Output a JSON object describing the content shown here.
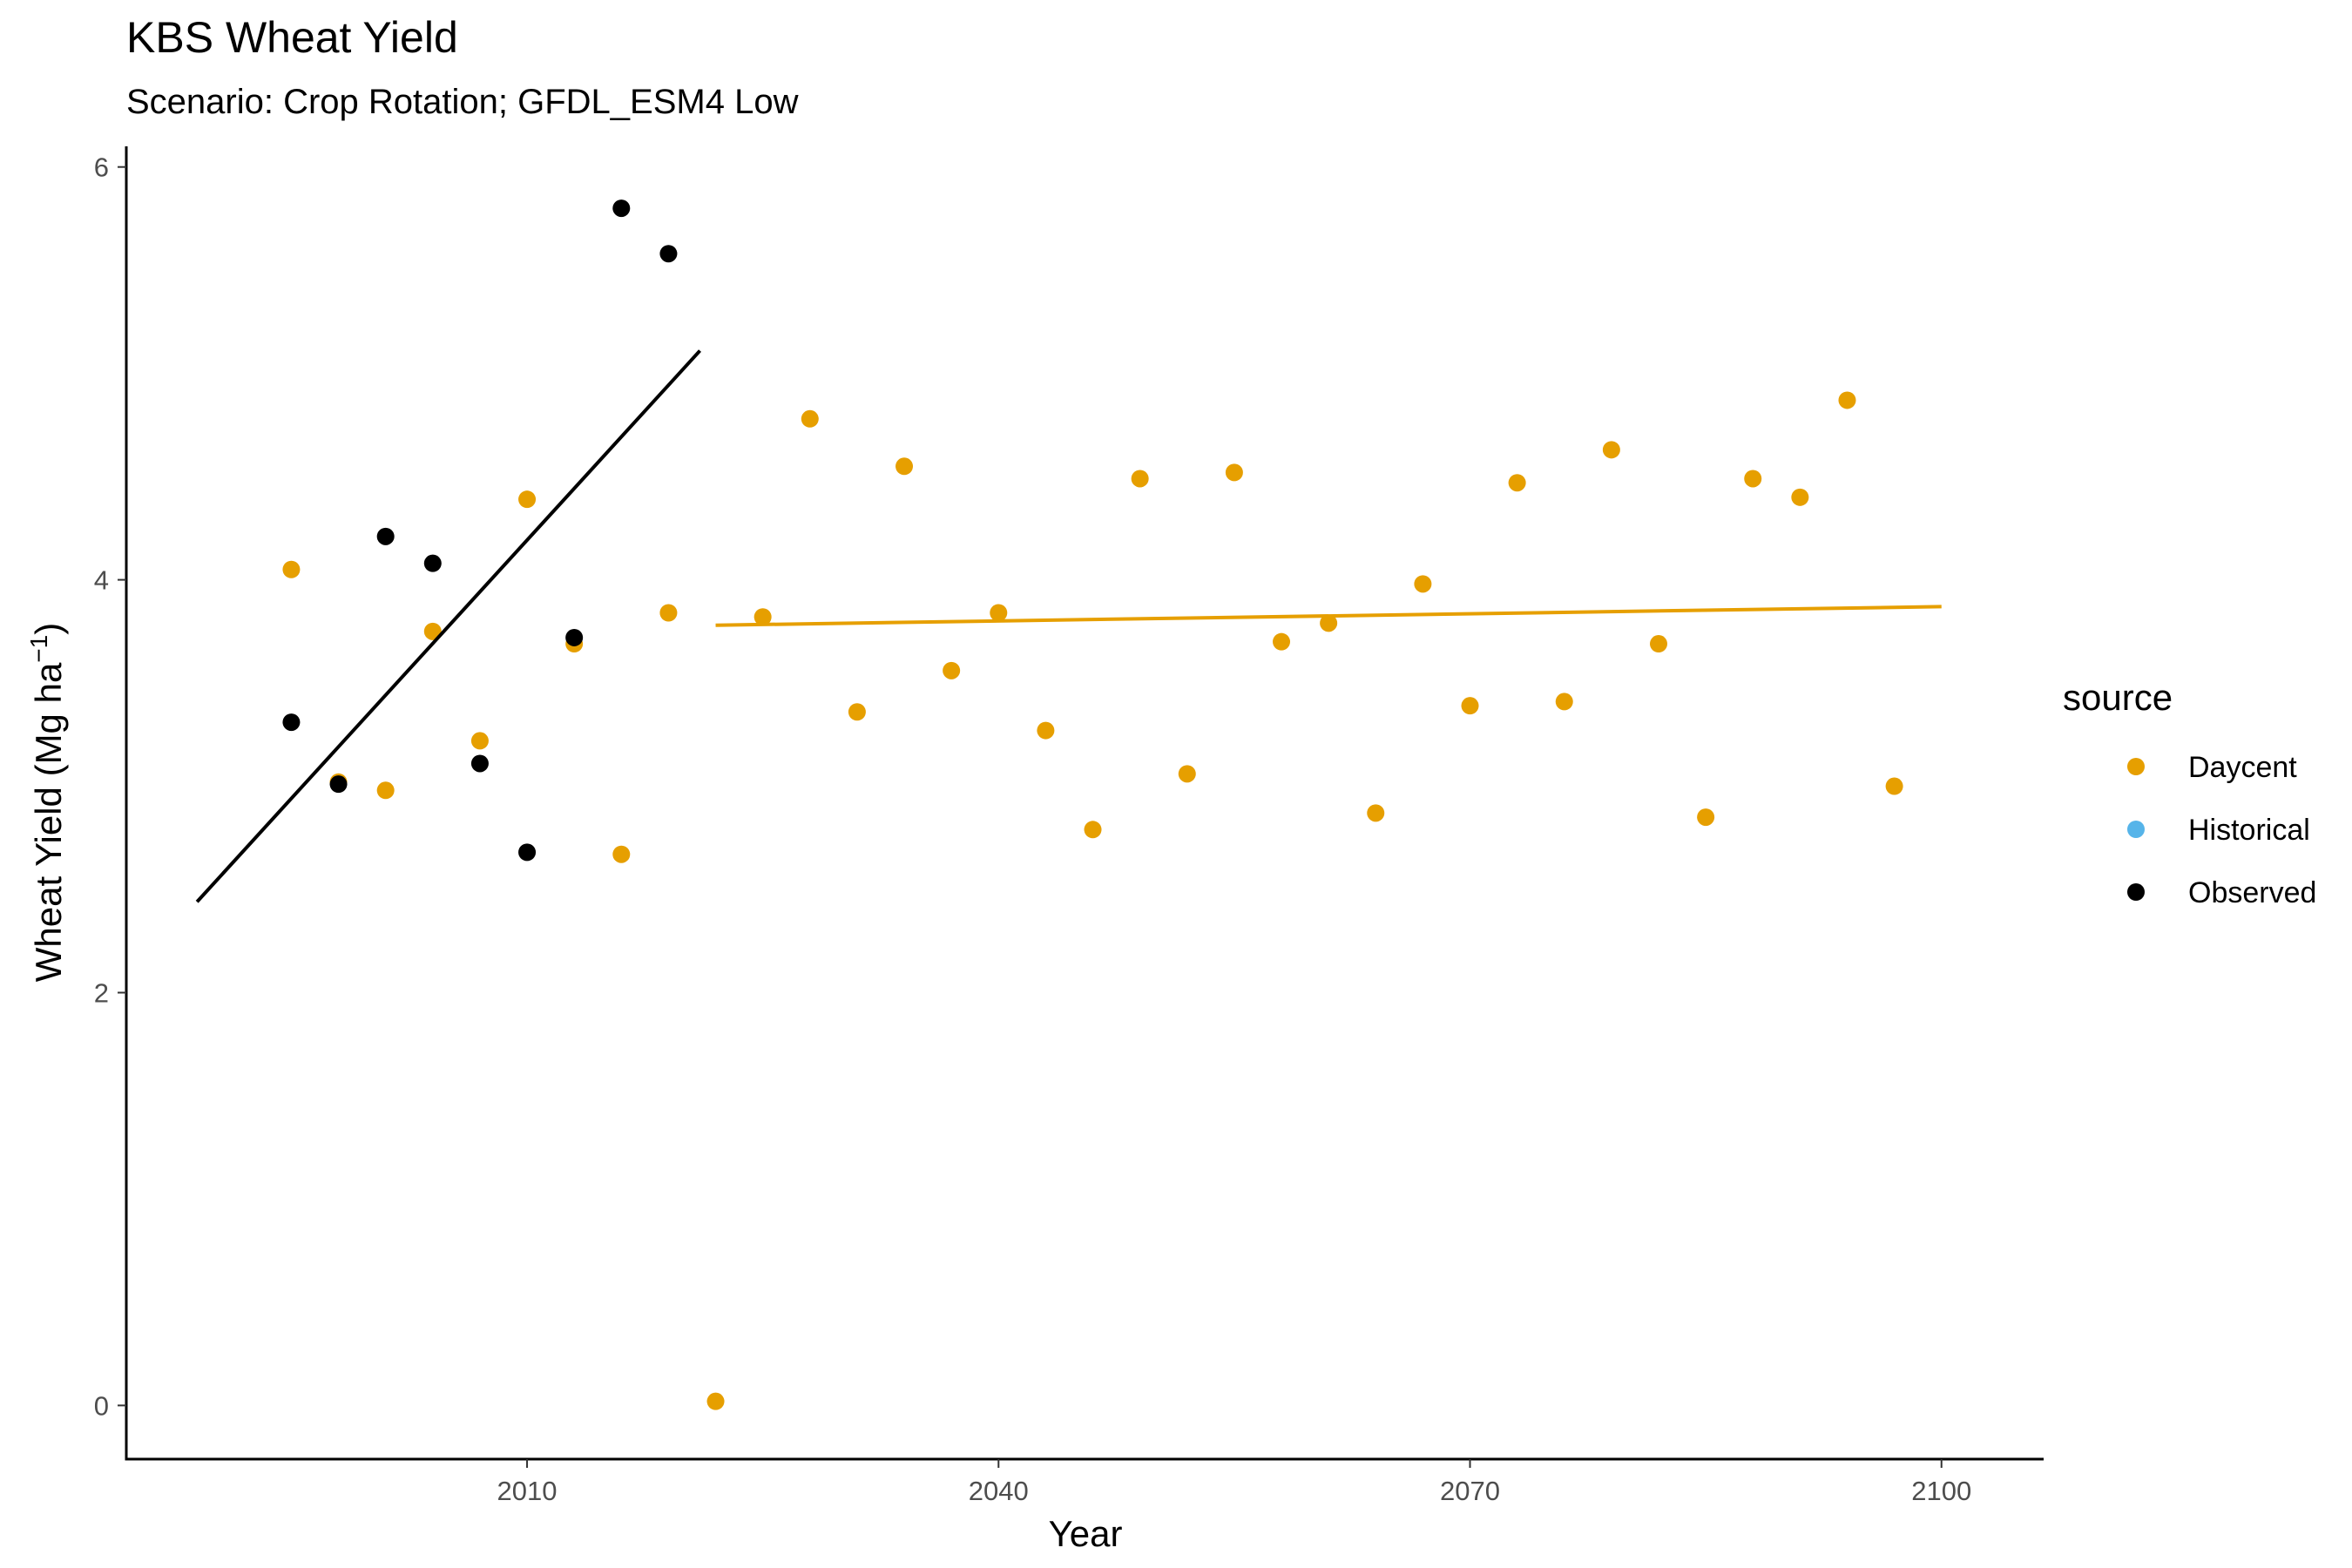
{
  "chart_data": {
    "type": "scatter",
    "title": "KBS Wheat Yield",
    "subtitle": "Scenario: Crop Rotation; GFDL_ESM4 Low",
    "xlabel": "Year",
    "ylabel": "Wheat Yield (Mg ha",
    "ylabel_sup": "−1",
    "ylabel_close": ")",
    "xlim": [
      1984.5,
      2106.5
    ],
    "ylim": [
      -0.26,
      6.1
    ],
    "x_ticks": [
      2010,
      2040,
      2070,
      2100
    ],
    "y_ticks": [
      0,
      2,
      4,
      6
    ],
    "grid": false,
    "legend": {
      "title": "source",
      "position": "right"
    },
    "series": [
      {
        "name": "Daycent",
        "color": "#E69F00",
        "points": [
          [
            1995,
            4.05
          ],
          [
            1998,
            3.02
          ],
          [
            2001,
            2.98
          ],
          [
            2004,
            3.75
          ],
          [
            2007,
            3.22
          ],
          [
            2010,
            4.39
          ],
          [
            2013,
            3.69
          ],
          [
            2016,
            2.67
          ],
          [
            2019,
            3.84
          ],
          [
            2022,
            0.02
          ],
          [
            2025,
            3.82
          ],
          [
            2028,
            4.78
          ],
          [
            2031,
            3.36
          ],
          [
            2034,
            4.55
          ],
          [
            2037,
            3.56
          ],
          [
            2040,
            3.84
          ],
          [
            2043,
            3.27
          ],
          [
            2046,
            2.79
          ],
          [
            2049,
            4.49
          ],
          [
            2052,
            3.06
          ],
          [
            2055,
            4.52
          ],
          [
            2058,
            3.7
          ],
          [
            2061,
            3.79
          ],
          [
            2064,
            2.87
          ],
          [
            2067,
            3.98
          ],
          [
            2070,
            3.39
          ],
          [
            2073,
            4.47
          ],
          [
            2076,
            3.41
          ],
          [
            2079,
            4.63
          ],
          [
            2082,
            3.69
          ],
          [
            2085,
            2.85
          ],
          [
            2088,
            4.49
          ],
          [
            2091,
            4.4
          ],
          [
            2094,
            4.87
          ],
          [
            2097,
            3.0
          ]
        ]
      },
      {
        "name": "Historical",
        "color": "#56B4E9",
        "points": []
      },
      {
        "name": "Observed",
        "color": "#000000",
        "points": [
          [
            1995,
            3.31
          ],
          [
            1998,
            3.01
          ],
          [
            2001,
            4.21
          ],
          [
            2004,
            4.08
          ],
          [
            2007,
            3.11
          ],
          [
            2010,
            2.68
          ],
          [
            2013,
            3.72
          ],
          [
            2016,
            5.8
          ],
          [
            2019,
            5.58
          ]
        ]
      }
    ],
    "trend_lines": [
      {
        "series": "Observed",
        "color": "#000000",
        "x": [
          1989,
          2021
        ],
        "y": [
          2.44,
          5.11
        ]
      },
      {
        "series": "Daycent",
        "color": "#E69F00",
        "x": [
          2022,
          2100
        ],
        "y": [
          3.78,
          3.87
        ]
      }
    ]
  }
}
